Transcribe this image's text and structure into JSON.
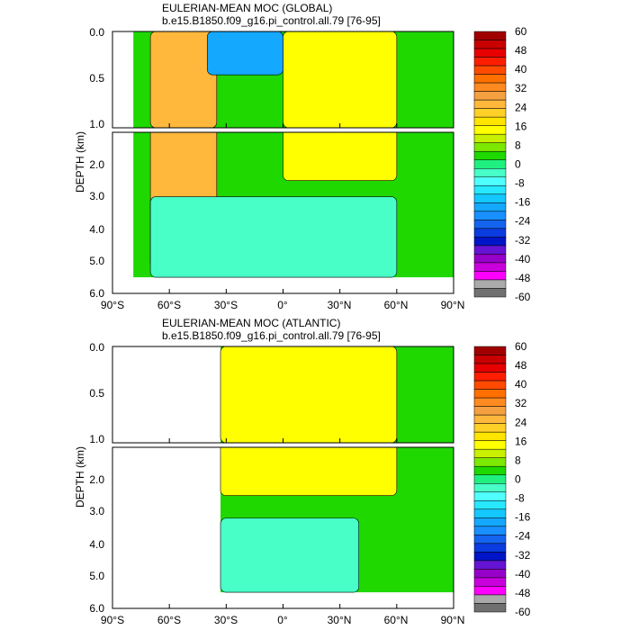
{
  "chart_data": [
    {
      "type": "heatmap",
      "title": "EULERIAN-MEAN MOC (GLOBAL)",
      "subtitle": "b.e15.B1850.f09_g16.pi_control.all.79 [76-95]",
      "ylabel": "DEPTH (km)",
      "xlabel": "",
      "x_range": [
        -90,
        90
      ],
      "y_range": [
        0,
        6
      ],
      "upper_panel_ylim": [
        0,
        1
      ],
      "lower_panel_ylim": [
        1,
        6
      ],
      "x_ticks": [
        "90°S",
        "60°S",
        "30°S",
        "0°",
        "30°N",
        "60°N",
        "90°N"
      ],
      "y_ticks_upper": [
        "0.0",
        "0.5",
        "1.0"
      ],
      "y_ticks_lower": [
        "2.0",
        "3.0",
        "4.0",
        "5.0",
        "6.0"
      ],
      "data_extent": {
        "lat_min": -79,
        "lat_max": 90,
        "max_depth": 5.5
      },
      "features": [
        {
          "label": "southern positive cell",
          "lat": [
            -70,
            -35
          ],
          "depth": [
            0,
            5.2
          ],
          "value": 28
        },
        {
          "label": "southern negative cell",
          "lat": [
            -40,
            0
          ],
          "depth": [
            0,
            0.45
          ],
          "value": -20
        },
        {
          "label": "northern overturning cell",
          "lat": [
            0,
            60
          ],
          "depth": [
            0,
            2.5
          ],
          "value": 16
        },
        {
          "label": "abyssal cell",
          "lat": [
            -70,
            60
          ],
          "depth": [
            3.0,
            5.5
          ],
          "value": -2
        }
      ]
    },
    {
      "type": "heatmap",
      "title": "EULERIAN-MEAN MOC (ATLANTIC)",
      "subtitle": "b.e15.B1850.f09_g16.pi_control.all.79 [76-95]",
      "ylabel": "DEPTH (km)",
      "xlabel": "",
      "x_range": [
        -90,
        90
      ],
      "y_range": [
        0,
        6
      ],
      "upper_panel_ylim": [
        0,
        1
      ],
      "lower_panel_ylim": [
        1,
        6
      ],
      "x_ticks": [
        "90°S",
        "60°S",
        "30°S",
        "0°",
        "30°N",
        "60°N",
        "90°N"
      ],
      "y_ticks_upper": [
        "0.0",
        "0.5",
        "1.0"
      ],
      "y_ticks_lower": [
        "2.0",
        "3.0",
        "4.0",
        "5.0",
        "6.0"
      ],
      "data_extent": {
        "lat_min": -33,
        "lat_max": 90,
        "max_depth": 5.5
      },
      "features": [
        {
          "label": "north atlantic overturning cell",
          "lat": [
            -33,
            60
          ],
          "depth": [
            0,
            2.5
          ],
          "value": 16
        },
        {
          "label": "antarctic bottom water cell",
          "lat": [
            -33,
            40
          ],
          "depth": [
            3.2,
            5.5
          ],
          "value": -3
        }
      ]
    }
  ],
  "colorbar": {
    "labels": [
      "60",
      "48",
      "40",
      "32",
      "24",
      "16",
      "8",
      "0",
      "-8",
      "-16",
      "-24",
      "-32",
      "-40",
      "-48",
      "-60"
    ],
    "levels": [
      60,
      56,
      52,
      48,
      44,
      40,
      36,
      32,
      28,
      24,
      20,
      16,
      12,
      8,
      4,
      0,
      -4,
      -8,
      -12,
      -16,
      -20,
      -24,
      -28,
      -32,
      -36,
      -40,
      -44,
      -48,
      -52,
      -56,
      -60
    ],
    "colors": [
      "#a10000",
      "#c80000",
      "#e60000",
      "#ff1f00",
      "#ff4a00",
      "#ff7000",
      "#ff8a20",
      "#f5a040",
      "#ffb83c",
      "#ffd028",
      "#ffe500",
      "#ffff00",
      "#c8f000",
      "#7de800",
      "#1ed800",
      "#20f080",
      "#48ffc8",
      "#50ffff",
      "#28e8ff",
      "#14c8ff",
      "#14a8ff",
      "#1890ff",
      "#1464f0",
      "#0a3ce0",
      "#0014c8",
      "#6414d2",
      "#9600c8",
      "#c800dc",
      "#ff00ff",
      "#aaaaaa",
      "#707070"
    ]
  }
}
